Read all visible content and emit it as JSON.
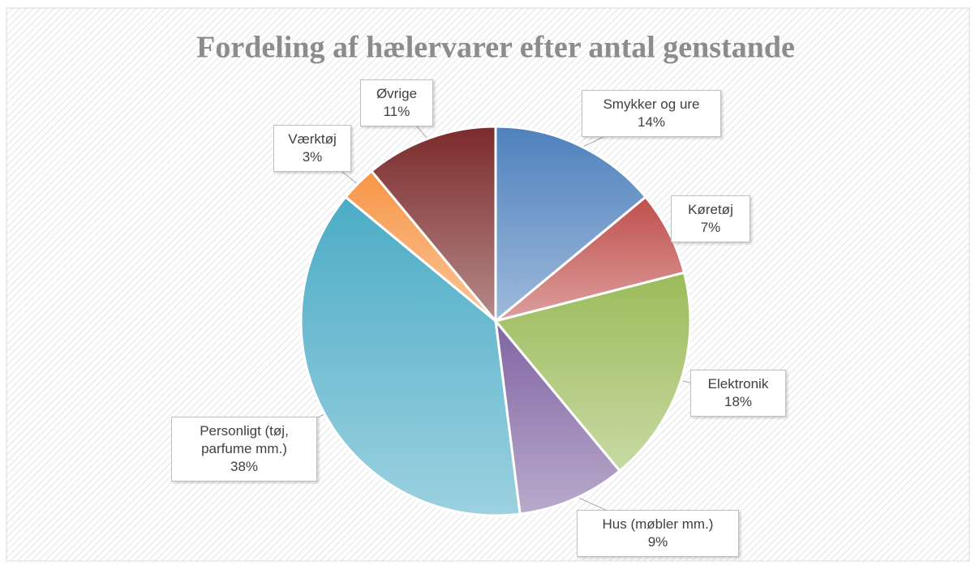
{
  "chart_data": {
    "type": "pie",
    "title": "Fordeling af hælervarer efter antal genstande",
    "categories": [
      "Smykker og ure",
      "Køretøj",
      "Elektronik",
      "Hus (møbler mm.)",
      "Personligt (tøj, parfume mm.)",
      "Værktøj",
      "Øvrige"
    ],
    "values": [
      14,
      7,
      18,
      9,
      38,
      3,
      11
    ],
    "value_labels": [
      "14%",
      "7%",
      "18%",
      "9%",
      "38%",
      "3%",
      "11%"
    ],
    "colors": [
      "#4f81bd",
      "#c0504d",
      "#9bbb59",
      "#8064a2",
      "#4bacc6",
      "#f79646",
      "#7b2a2a"
    ]
  }
}
